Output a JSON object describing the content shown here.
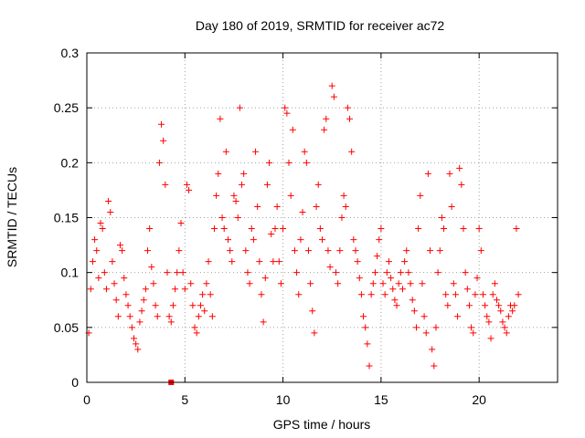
{
  "chart_data": {
    "type": "scatter",
    "title": "Day 180 of 2019, SRMTID for receiver ac72",
    "xlabel": "GPS time / hours",
    "ylabel": "SRMTID / TECUs",
    "xlim": [
      0,
      24
    ],
    "ylim": [
      0,
      0.3
    ],
    "xticks": [
      0,
      5,
      10,
      15,
      20
    ],
    "xtick_labels": [
      "0",
      "5",
      "10",
      "15",
      "20"
    ],
    "yticks": [
      0,
      0.05,
      0.1,
      0.15,
      0.2,
      0.25,
      0.3
    ],
    "ytick_labels": [
      "0",
      "0.05",
      "0.1",
      "0.15",
      "0.2",
      "0.25",
      "0.3"
    ],
    "grid": true,
    "marker": "+",
    "color": "#ff0000",
    "baseline_marker": {
      "x": 4.3,
      "y": 0
    },
    "series": [
      {
        "name": "SRMTID",
        "points": [
          [
            0.1,
            0.045
          ],
          [
            0.2,
            0.085
          ],
          [
            0.3,
            0.11
          ],
          [
            0.4,
            0.13
          ],
          [
            0.5,
            0.12
          ],
          [
            0.6,
            0.095
          ],
          [
            0.7,
            0.145
          ],
          [
            0.8,
            0.14
          ],
          [
            0.9,
            0.1
          ],
          [
            1.0,
            0.085
          ],
          [
            1.1,
            0.165
          ],
          [
            1.2,
            0.155
          ],
          [
            1.3,
            0.11
          ],
          [
            1.4,
            0.09
          ],
          [
            1.5,
            0.075
          ],
          [
            1.6,
            0.06
          ],
          [
            1.7,
            0.125
          ],
          [
            1.8,
            0.12
          ],
          [
            1.9,
            0.095
          ],
          [
            2.0,
            0.08
          ],
          [
            2.1,
            0.07
          ],
          [
            2.2,
            0.06
          ],
          [
            2.3,
            0.05
          ],
          [
            2.4,
            0.04
          ],
          [
            2.5,
            0.035
          ],
          [
            2.6,
            0.03
          ],
          [
            2.7,
            0.055
          ],
          [
            2.8,
            0.065
          ],
          [
            2.9,
            0.075
          ],
          [
            3.0,
            0.085
          ],
          [
            3.1,
            0.12
          ],
          [
            3.2,
            0.14
          ],
          [
            3.3,
            0.105
          ],
          [
            3.4,
            0.09
          ],
          [
            3.5,
            0.07
          ],
          [
            3.6,
            0.06
          ],
          [
            3.7,
            0.2
          ],
          [
            3.8,
            0.235
          ],
          [
            3.9,
            0.22
          ],
          [
            4.0,
            0.18
          ],
          [
            4.1,
            0.1
          ],
          [
            4.2,
            0.06
          ],
          [
            4.3,
            0.055
          ],
          [
            4.4,
            0.07
          ],
          [
            4.5,
            0.085
          ],
          [
            4.6,
            0.1
          ],
          [
            4.7,
            0.12
          ],
          [
            4.8,
            0.145
          ],
          [
            4.9,
            0.1
          ],
          [
            5.0,
            0.085
          ],
          [
            5.1,
            0.18
          ],
          [
            5.2,
            0.175
          ],
          [
            5.3,
            0.09
          ],
          [
            5.4,
            0.07
          ],
          [
            5.5,
            0.05
          ],
          [
            5.6,
            0.045
          ],
          [
            5.7,
            0.06
          ],
          [
            5.8,
            0.07
          ],
          [
            5.9,
            0.08
          ],
          [
            6.0,
            0.065
          ],
          [
            6.1,
            0.09
          ],
          [
            6.2,
            0.11
          ],
          [
            6.3,
            0.08
          ],
          [
            6.4,
            0.06
          ],
          [
            6.5,
            0.14
          ],
          [
            6.6,
            0.17
          ],
          [
            6.7,
            0.19
          ],
          [
            6.8,
            0.24
          ],
          [
            6.9,
            0.15
          ],
          [
            7.0,
            0.14
          ],
          [
            7.1,
            0.21
          ],
          [
            7.2,
            0.13
          ],
          [
            7.3,
            0.12
          ],
          [
            7.4,
            0.11
          ],
          [
            7.5,
            0.17
          ],
          [
            7.6,
            0.165
          ],
          [
            7.7,
            0.15
          ],
          [
            7.8,
            0.25
          ],
          [
            7.9,
            0.18
          ],
          [
            8.0,
            0.19
          ],
          [
            8.1,
            0.12
          ],
          [
            8.2,
            0.1
          ],
          [
            8.3,
            0.09
          ],
          [
            8.4,
            0.14
          ],
          [
            8.5,
            0.13
          ],
          [
            8.6,
            0.21
          ],
          [
            8.7,
            0.16
          ],
          [
            8.8,
            0.11
          ],
          [
            8.9,
            0.08
          ],
          [
            9.0,
            0.055
          ],
          [
            9.1,
            0.095
          ],
          [
            9.2,
            0.18
          ],
          [
            9.3,
            0.2
          ],
          [
            9.4,
            0.135
          ],
          [
            9.5,
            0.11
          ],
          [
            9.6,
            0.14
          ],
          [
            9.7,
            0.16
          ],
          [
            9.8,
            0.11
          ],
          [
            9.9,
            0.09
          ],
          [
            10.0,
            0.14
          ],
          [
            10.1,
            0.25
          ],
          [
            10.2,
            0.245
          ],
          [
            10.3,
            0.2
          ],
          [
            10.4,
            0.17
          ],
          [
            10.5,
            0.23
          ],
          [
            10.6,
            0.12
          ],
          [
            10.7,
            0.1
          ],
          [
            10.8,
            0.08
          ],
          [
            10.9,
            0.13
          ],
          [
            11.0,
            0.155
          ],
          [
            11.1,
            0.21
          ],
          [
            11.2,
            0.2
          ],
          [
            11.3,
            0.12
          ],
          [
            11.4,
            0.09
          ],
          [
            11.5,
            0.065
          ],
          [
            11.6,
            0.045
          ],
          [
            11.7,
            0.16
          ],
          [
            11.8,
            0.18
          ],
          [
            11.9,
            0.14
          ],
          [
            12.0,
            0.13
          ],
          [
            12.1,
            0.23
          ],
          [
            12.2,
            0.24
          ],
          [
            12.3,
            0.12
          ],
          [
            12.4,
            0.105
          ],
          [
            12.5,
            0.27
          ],
          [
            12.6,
            0.26
          ],
          [
            12.7,
            0.1
          ],
          [
            12.8,
            0.09
          ],
          [
            12.9,
            0.12
          ],
          [
            13.0,
            0.15
          ],
          [
            13.1,
            0.17
          ],
          [
            13.2,
            0.16
          ],
          [
            13.3,
            0.25
          ],
          [
            13.4,
            0.24
          ],
          [
            13.5,
            0.21
          ],
          [
            13.6,
            0.13
          ],
          [
            13.7,
            0.12
          ],
          [
            13.8,
            0.11
          ],
          [
            13.9,
            0.095
          ],
          [
            14.0,
            0.08
          ],
          [
            14.1,
            0.06
          ],
          [
            14.2,
            0.05
          ],
          [
            14.3,
            0.035
          ],
          [
            14.4,
            0.015
          ],
          [
            14.5,
            0.08
          ],
          [
            14.6,
            0.09
          ],
          [
            14.7,
            0.1
          ],
          [
            14.8,
            0.115
          ],
          [
            14.9,
            0.13
          ],
          [
            15.0,
            0.14
          ],
          [
            15.1,
            0.09
          ],
          [
            15.2,
            0.08
          ],
          [
            15.3,
            0.1
          ],
          [
            15.4,
            0.11
          ],
          [
            15.5,
            0.095
          ],
          [
            15.6,
            0.085
          ],
          [
            15.7,
            0.075
          ],
          [
            15.8,
            0.07
          ],
          [
            15.9,
            0.09
          ],
          [
            16.0,
            0.1
          ],
          [
            16.1,
            0.085
          ],
          [
            16.2,
            0.11
          ],
          [
            16.3,
            0.12
          ],
          [
            16.4,
            0.1
          ],
          [
            16.5,
            0.09
          ],
          [
            16.6,
            0.075
          ],
          [
            16.7,
            0.065
          ],
          [
            16.8,
            0.05
          ],
          [
            16.9,
            0.14
          ],
          [
            17.0,
            0.17
          ],
          [
            17.1,
            0.09
          ],
          [
            17.2,
            0.06
          ],
          [
            17.3,
            0.045
          ],
          [
            17.4,
            0.19
          ],
          [
            17.5,
            0.12
          ],
          [
            17.6,
            0.03
          ],
          [
            17.7,
            0.015
          ],
          [
            17.8,
            0.05
          ],
          [
            17.9,
            0.1
          ],
          [
            18.0,
            0.12
          ],
          [
            18.1,
            0.15
          ],
          [
            18.2,
            0.14
          ],
          [
            18.3,
            0.08
          ],
          [
            18.4,
            0.07
          ],
          [
            18.5,
            0.19
          ],
          [
            18.6,
            0.16
          ],
          [
            18.7,
            0.09
          ],
          [
            18.8,
            0.08
          ],
          [
            18.9,
            0.06
          ],
          [
            19.0,
            0.195
          ],
          [
            19.1,
            0.18
          ],
          [
            19.2,
            0.14
          ],
          [
            19.3,
            0.1
          ],
          [
            19.4,
            0.085
          ],
          [
            19.5,
            0.07
          ],
          [
            19.6,
            0.05
          ],
          [
            19.7,
            0.045
          ],
          [
            19.8,
            0.08
          ],
          [
            19.9,
            0.095
          ],
          [
            20.0,
            0.14
          ],
          [
            20.1,
            0.12
          ],
          [
            20.2,
            0.08
          ],
          [
            20.3,
            0.07
          ],
          [
            20.4,
            0.06
          ],
          [
            20.5,
            0.055
          ],
          [
            20.6,
            0.04
          ],
          [
            20.7,
            0.08
          ],
          [
            20.8,
            0.09
          ],
          [
            20.9,
            0.075
          ],
          [
            21.0,
            0.07
          ],
          [
            21.1,
            0.065
          ],
          [
            21.2,
            0.055
          ],
          [
            21.3,
            0.05
          ],
          [
            21.4,
            0.045
          ],
          [
            21.5,
            0.06
          ],
          [
            21.6,
            0.07
          ],
          [
            21.7,
            0.065
          ],
          [
            21.8,
            0.07
          ],
          [
            21.9,
            0.14
          ],
          [
            22.0,
            0.08
          ]
        ]
      }
    ]
  }
}
